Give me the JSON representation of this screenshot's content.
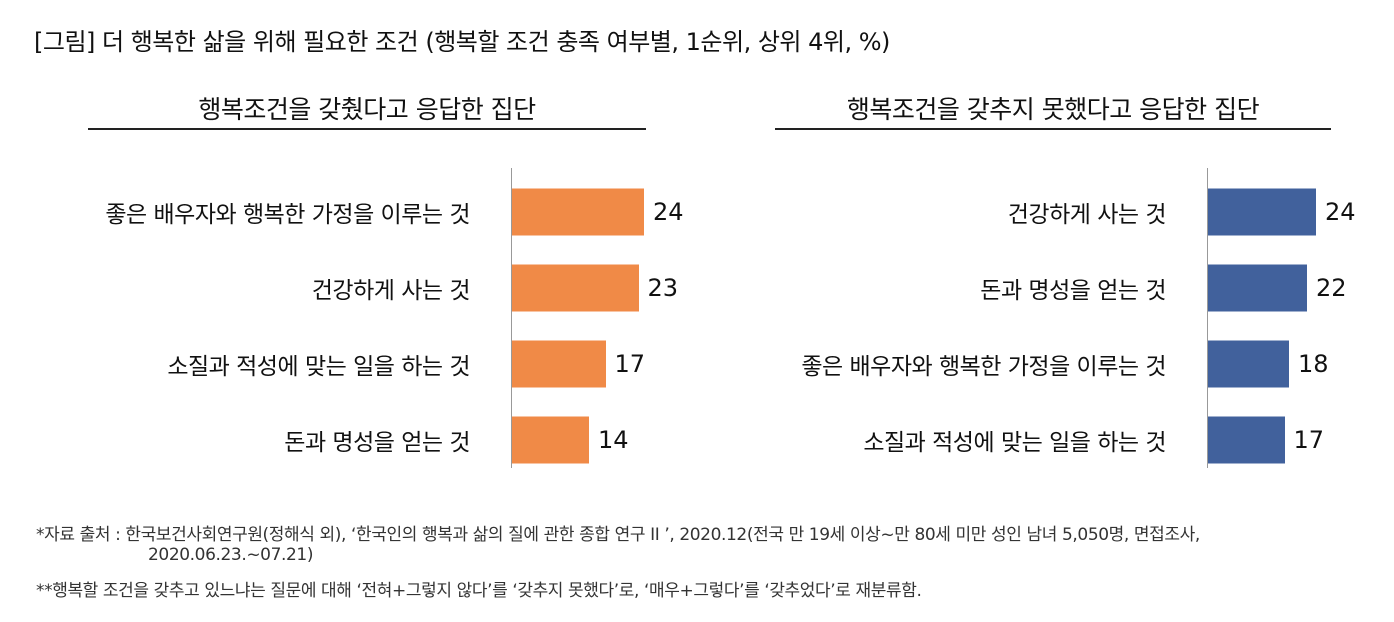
{
  "figure_title": "[그림] 더 행복한 삶을 위해 필요한 조건 (행복할 조건 충족 여부별, 1순위, 상위 4위, %)",
  "chart_data": [
    {
      "type": "bar",
      "orientation": "horizontal",
      "title": "행복조건을 갖췄다고 응답한 집단",
      "categories": [
        "좋은 배우자와 행복한 가정을 이루는 것",
        "건강하게 사는 것",
        "소질과 적성에 맞는 일을 하는 것",
        "돈과 명성을 얻는 것"
      ],
      "values": [
        24,
        23,
        17,
        14
      ],
      "bar_color": "#F08A47",
      "xlim": [
        0,
        30
      ]
    },
    {
      "type": "bar",
      "orientation": "horizontal",
      "title": "행복조건을 갖추지 못했다고 응답한 집단",
      "categories": [
        "건강하게 사는 것",
        "돈과 명성을 얻는 것",
        "좋은 배우자와 행복한 가정을 이루는 것",
        "소질과 적성에 맞는 일을 하는 것"
      ],
      "values": [
        24,
        22,
        18,
        17
      ],
      "bar_color": "#41619C",
      "xlim": [
        0,
        30
      ]
    }
  ],
  "footnotes": {
    "source_line1": "*자료 출처 : 한국보건사회연구원(정해식 외), ‘한국인의 행복과 삶의 질에 관한 종합 연구 II ’, 2020.12(전국 만 19세 이상~만 80세 미만 성인 남녀 5,050명, 면접조사,",
    "source_line2": "2020.06.23.~07.21)",
    "note": "**행복할 조건을 갖추고 있느냐는 질문에 대해 ‘전혀+그렇지 않다’를 ‘갖추지 못했다’로, ‘매우+그렇다’를 ‘갖추었다’로 재분류함."
  }
}
